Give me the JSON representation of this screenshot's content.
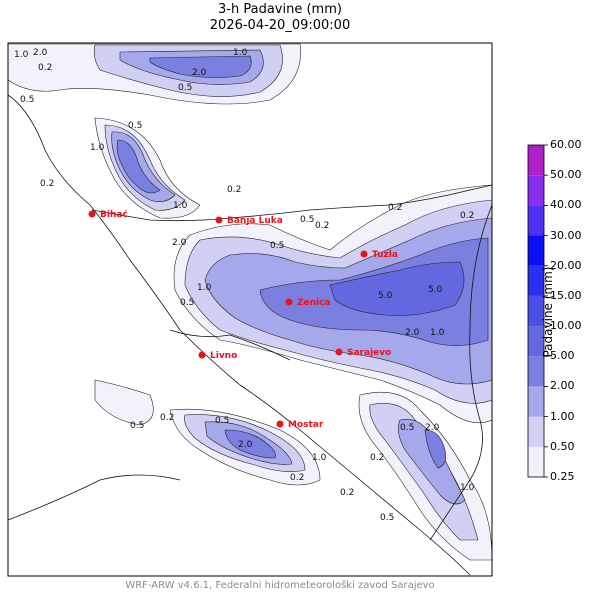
{
  "title": "3-h Padavine (mm)",
  "valid_time": "2026-04-20_09:00:00",
  "footer": "WRF-ARW v4.6.1, Federalni hidrometeorološki zavod Sarajevo",
  "colorbar": {
    "label": "Padavine (mm)",
    "levels": [
      "0.25",
      "0.50",
      "1.00",
      "2.00",
      "5.00",
      "10.00",
      "15.00",
      "20.00",
      "30.00",
      "40.00",
      "50.00",
      "60.00"
    ],
    "colors": [
      "#f2f2fb",
      "#cfd0f3",
      "#a5a8ea",
      "#7a7fe0",
      "#6468e0",
      "#4a4fe5",
      "#2a2ff0",
      "#0a0ff5",
      "#4f2ff2",
      "#8a2ff0",
      "#b020c8"
    ]
  },
  "cities": [
    {
      "name": "Bihać"
    },
    {
      "name": "Banja Luka"
    },
    {
      "name": "Tuzla"
    },
    {
      "name": "Zenica"
    },
    {
      "name": "Livno"
    },
    {
      "name": "Sarajevo"
    },
    {
      "name": "Mostar"
    }
  ],
  "contour_labels": [
    "2.0",
    "1.0",
    "0.5",
    "0.2",
    "2.0",
    "1.0",
    "0.5",
    "0.2",
    "1.0",
    "0.5",
    "0.2",
    "1.0",
    "2.0",
    "0.5",
    "0.2",
    "1.0",
    "0.5",
    "0.2",
    "5.0",
    "5.0",
    "2.0",
    "1.0",
    "0.5",
    "0.2",
    "2.0",
    "0.5",
    "0.2",
    "1.0",
    "2.0",
    "0.2",
    "0.5",
    "1.0",
    "0.5",
    "0.2",
    "0.2",
    "0.5"
  ]
}
